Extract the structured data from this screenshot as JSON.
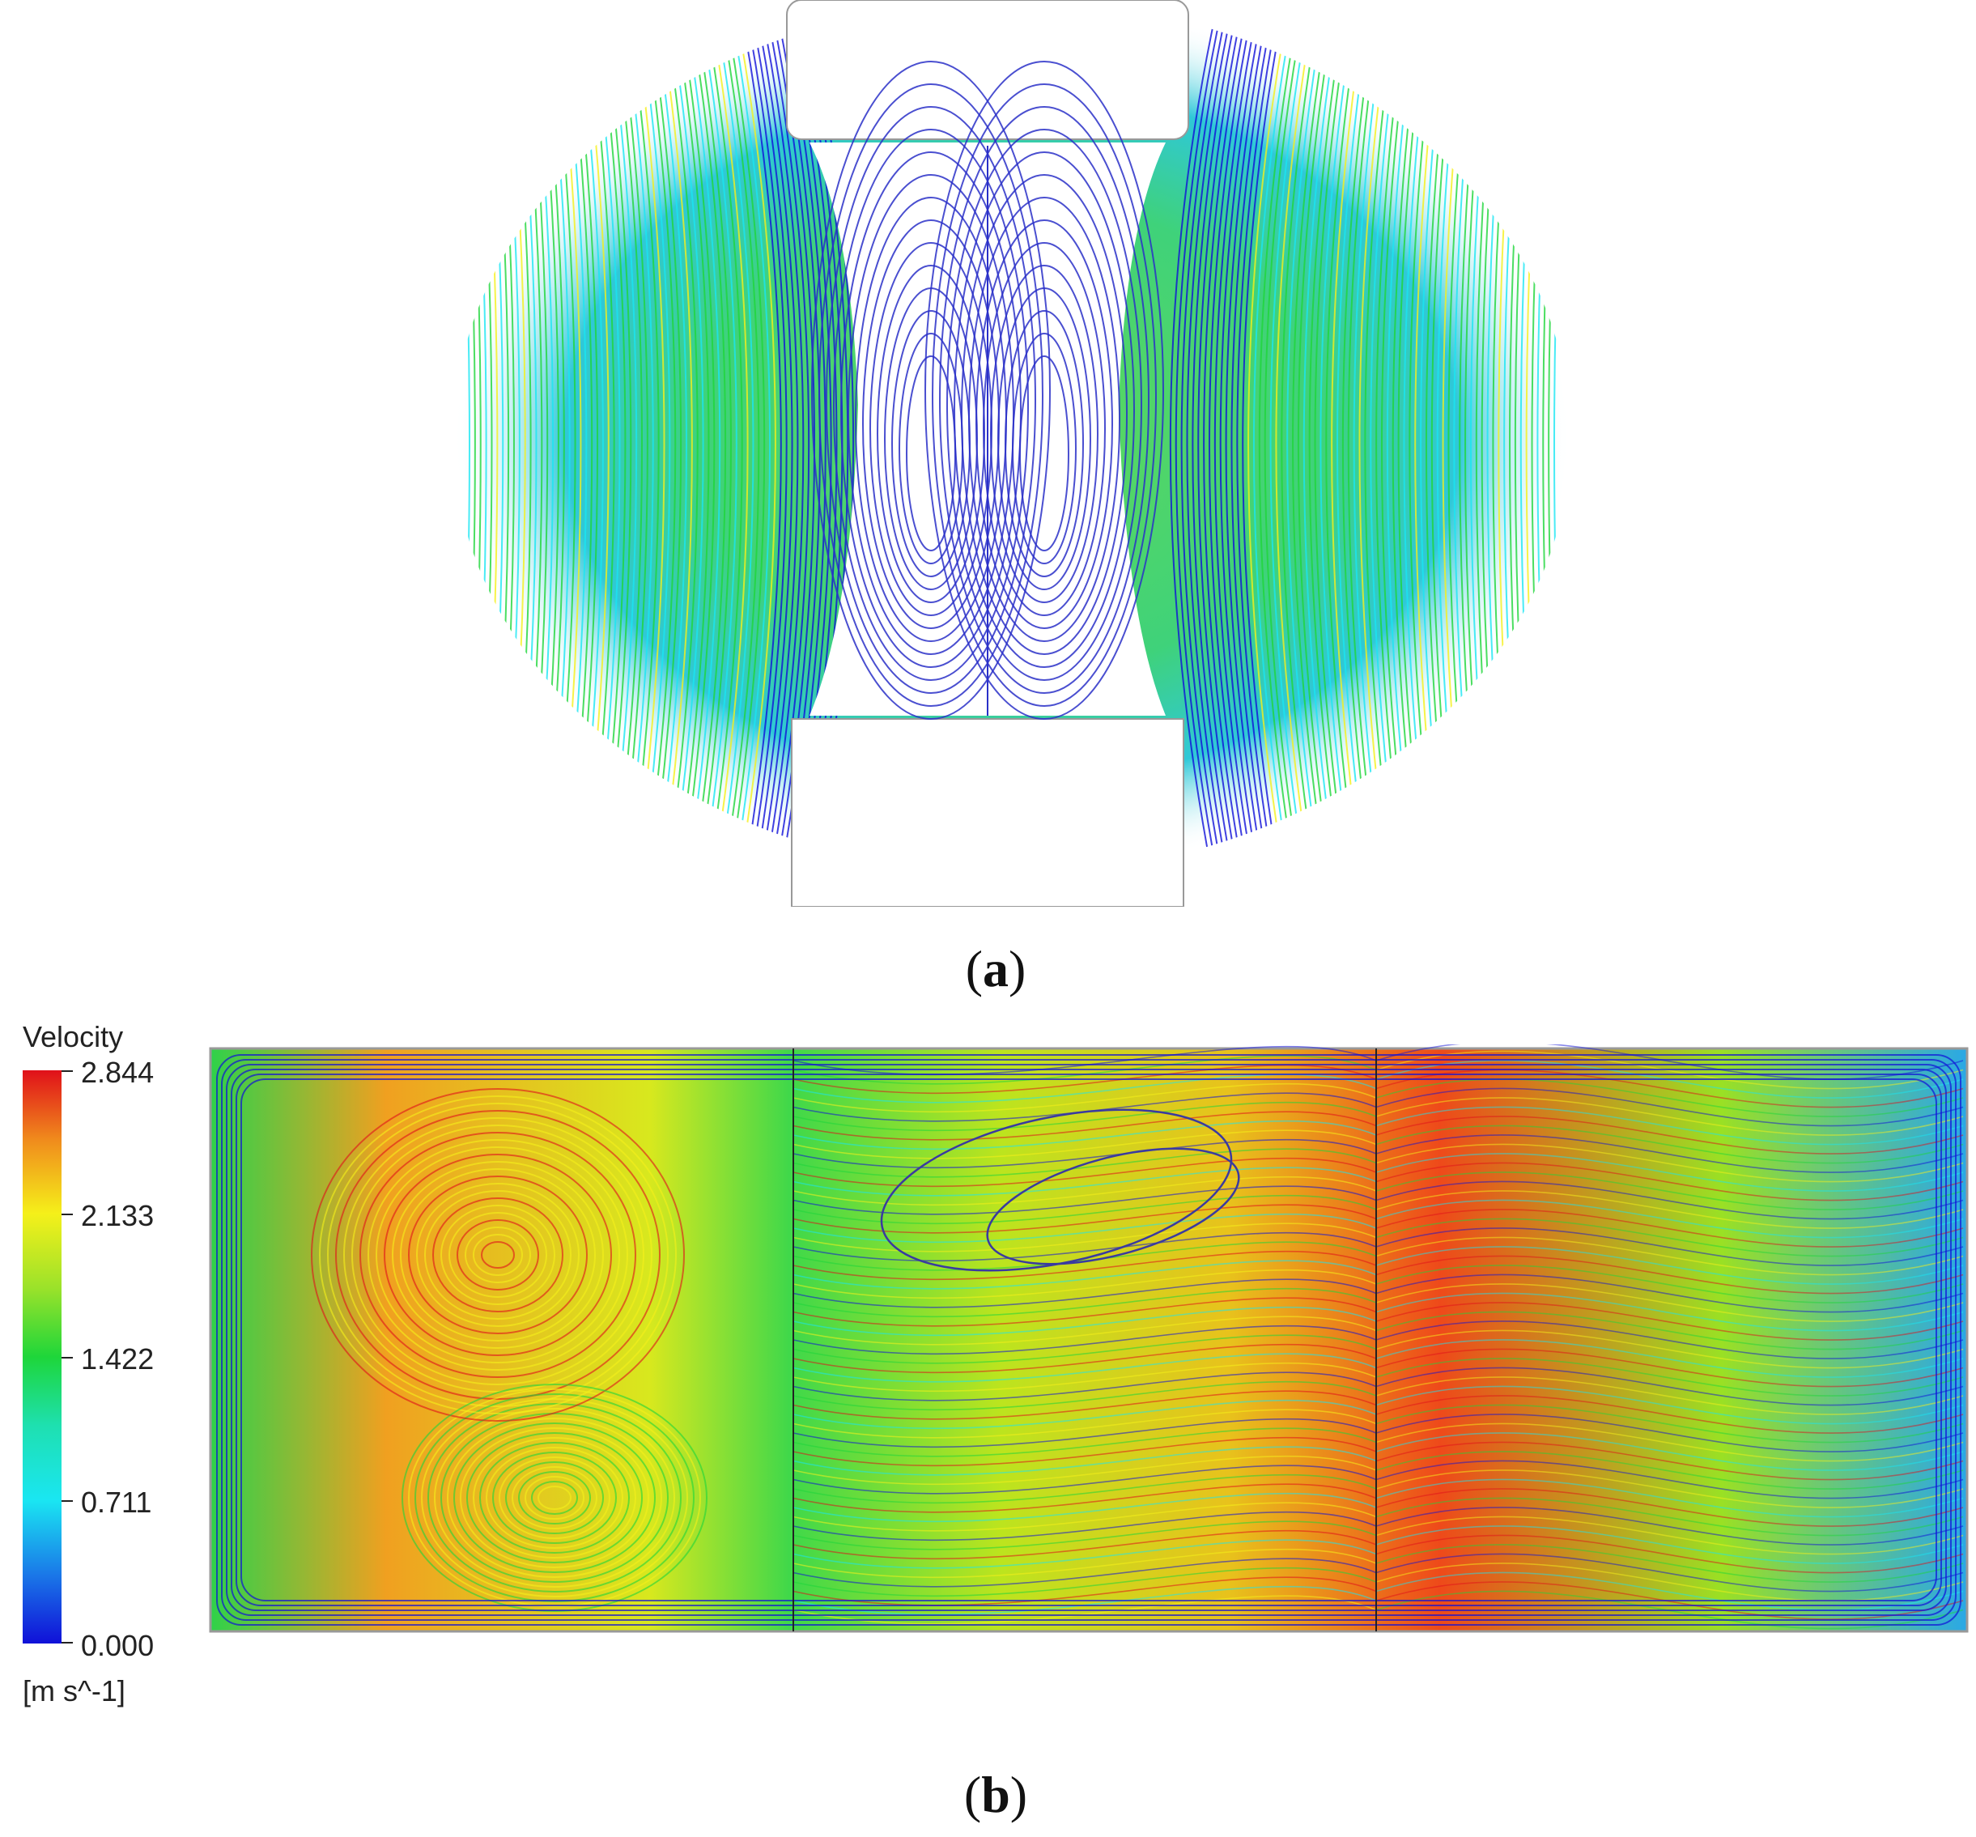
{
  "panels": {
    "a": {
      "label_letter": "a"
    },
    "b": {
      "label_letter": "b"
    }
  },
  "legend": {
    "title": "Velocity",
    "unit": "[m s^-1]",
    "ticks": [
      "2.844",
      "2.133",
      "1.422",
      "0.711",
      "0.000"
    ]
  },
  "colors": {
    "low": "#1010d8",
    "mid_low": "#1ae6f2",
    "mid": "#1ed63a",
    "mid_high": "#f5f01a",
    "high": "#e0101a"
  }
}
